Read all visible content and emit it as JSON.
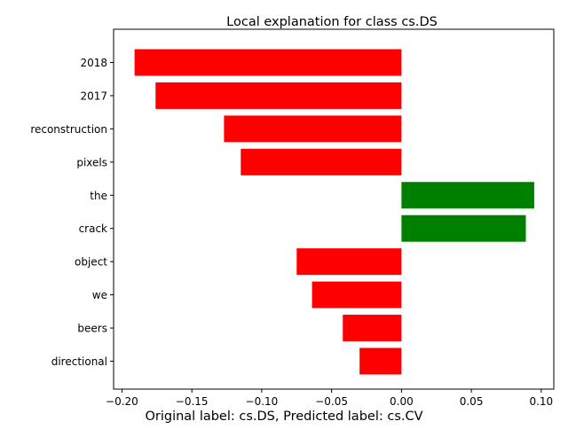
{
  "colors": {
    "positive": "#008000",
    "negative": "#ff0000",
    "axis": "#000000",
    "background": "#ffffff"
  },
  "chart_data": {
    "type": "bar",
    "orientation": "horizontal",
    "title": "Local explanation for class cs.DS",
    "footer": "Original label: cs.DS, Predicted label: cs.CV",
    "xlabel": "",
    "ylabel": "",
    "categories": [
      "2018",
      "2017",
      "reconstruction",
      "pixels",
      "the",
      "crack",
      "object",
      "we",
      "beers",
      "directional"
    ],
    "values": [
      -0.191,
      -0.176,
      -0.127,
      -0.115,
      0.095,
      0.089,
      -0.075,
      -0.064,
      -0.042,
      -0.03
    ],
    "xlim": [
      -0.206,
      0.109
    ],
    "xticks": [
      -0.2,
      -0.15,
      -0.1,
      -0.05,
      0.0,
      0.05,
      0.1
    ],
    "xtick_labels": [
      "−0.20",
      "−0.15",
      "−0.10",
      "−0.05",
      "0.00",
      "0.05",
      "0.10"
    ],
    "grid": false,
    "legend": "none"
  }
}
